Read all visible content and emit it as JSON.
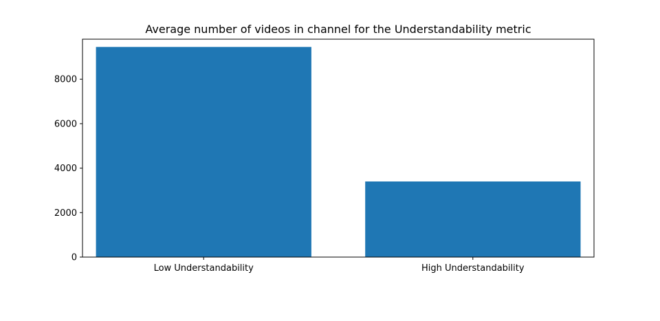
{
  "chart_data": {
    "type": "bar",
    "title": "Average number of videos in channel for the Understandability metric",
    "xlabel": "",
    "ylabel": "",
    "categories": [
      "Low Understandability",
      "High Understandability"
    ],
    "values": [
      9450,
      3400
    ],
    "ylim": [
      0,
      9800
    ],
    "yticks": [
      0,
      2000,
      4000,
      6000,
      8000
    ],
    "ytick_labels": [
      "0",
      "2000",
      "4000",
      "6000",
      "8000"
    ],
    "grid": false,
    "legend": "none",
    "colors": {
      "bar": "#1f77b4",
      "axis": "#000000",
      "background": "#ffffff"
    }
  }
}
